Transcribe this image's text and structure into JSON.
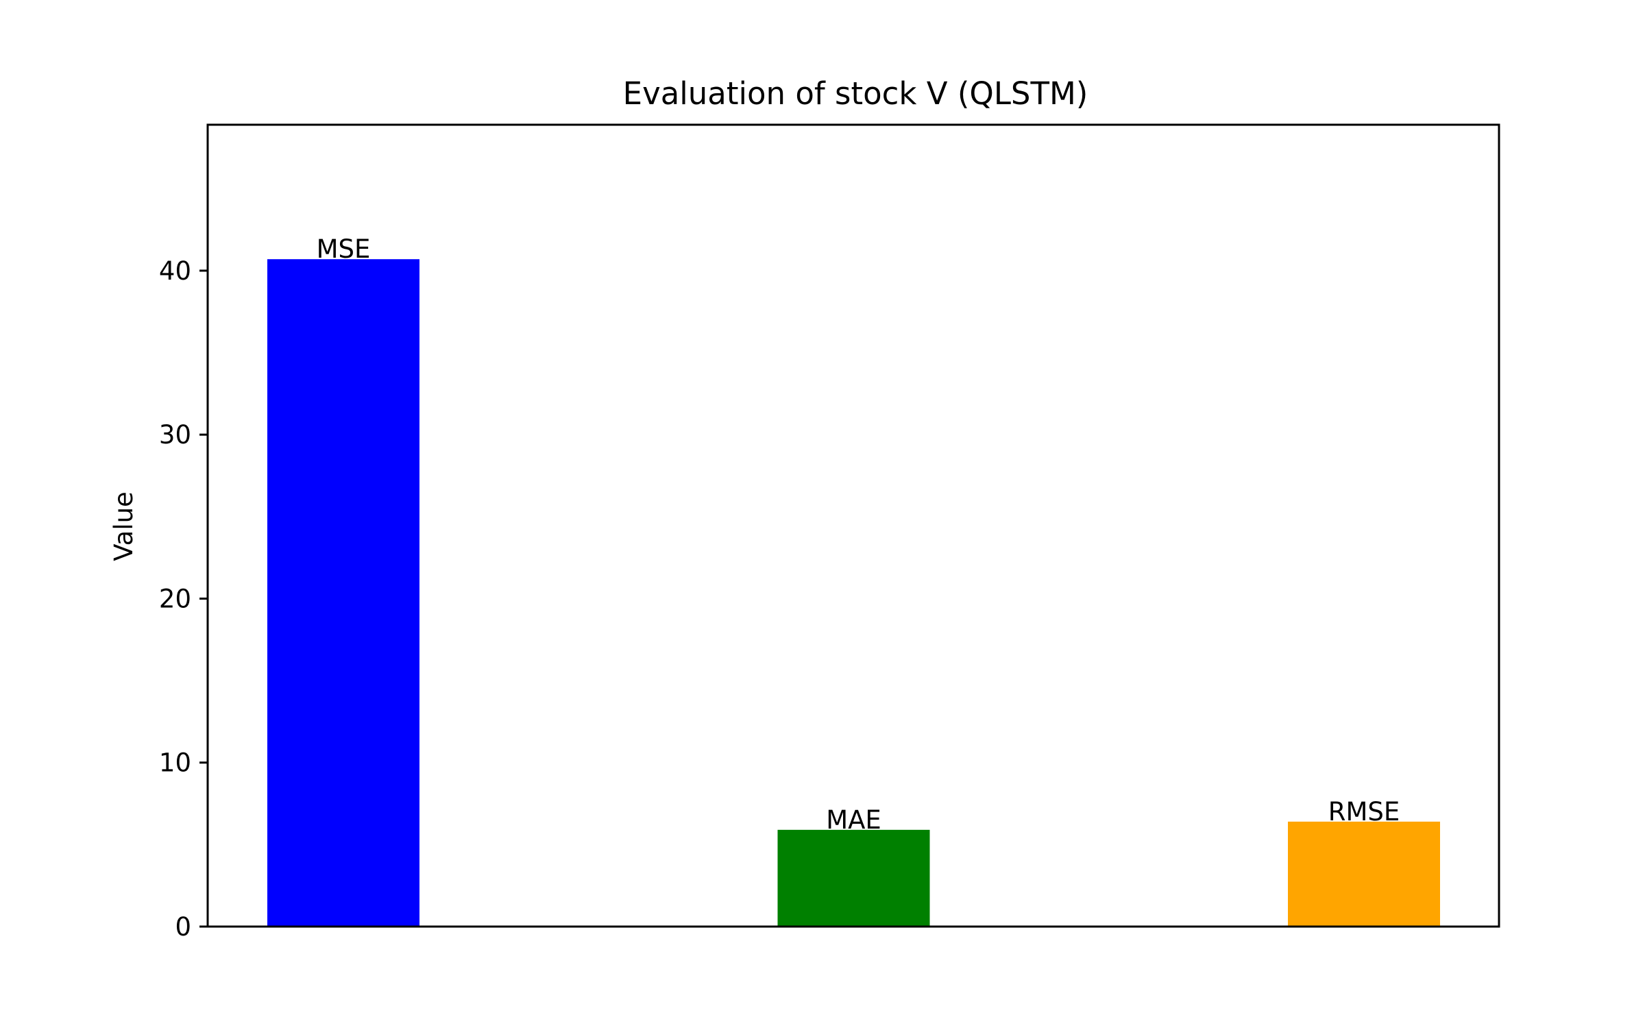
{
  "chart_data": {
    "type": "bar",
    "title": "Evaluation of stock V (QLSTM)",
    "xlabel": "",
    "ylabel": "Value",
    "categories": [
      "MSE",
      "MAE",
      "RMSE"
    ],
    "values": [
      40.7,
      5.9,
      6.4
    ],
    "colors": [
      "#0000ff",
      "#008000",
      "#ffa500"
    ],
    "bar_labels": [
      "MSE",
      "MAE",
      "RMSE"
    ],
    "ylim": [
      0,
      48.9
    ],
    "yticks": [
      0,
      10,
      20,
      30,
      40
    ],
    "show_xticks": false,
    "grid": false,
    "legend": "none"
  }
}
